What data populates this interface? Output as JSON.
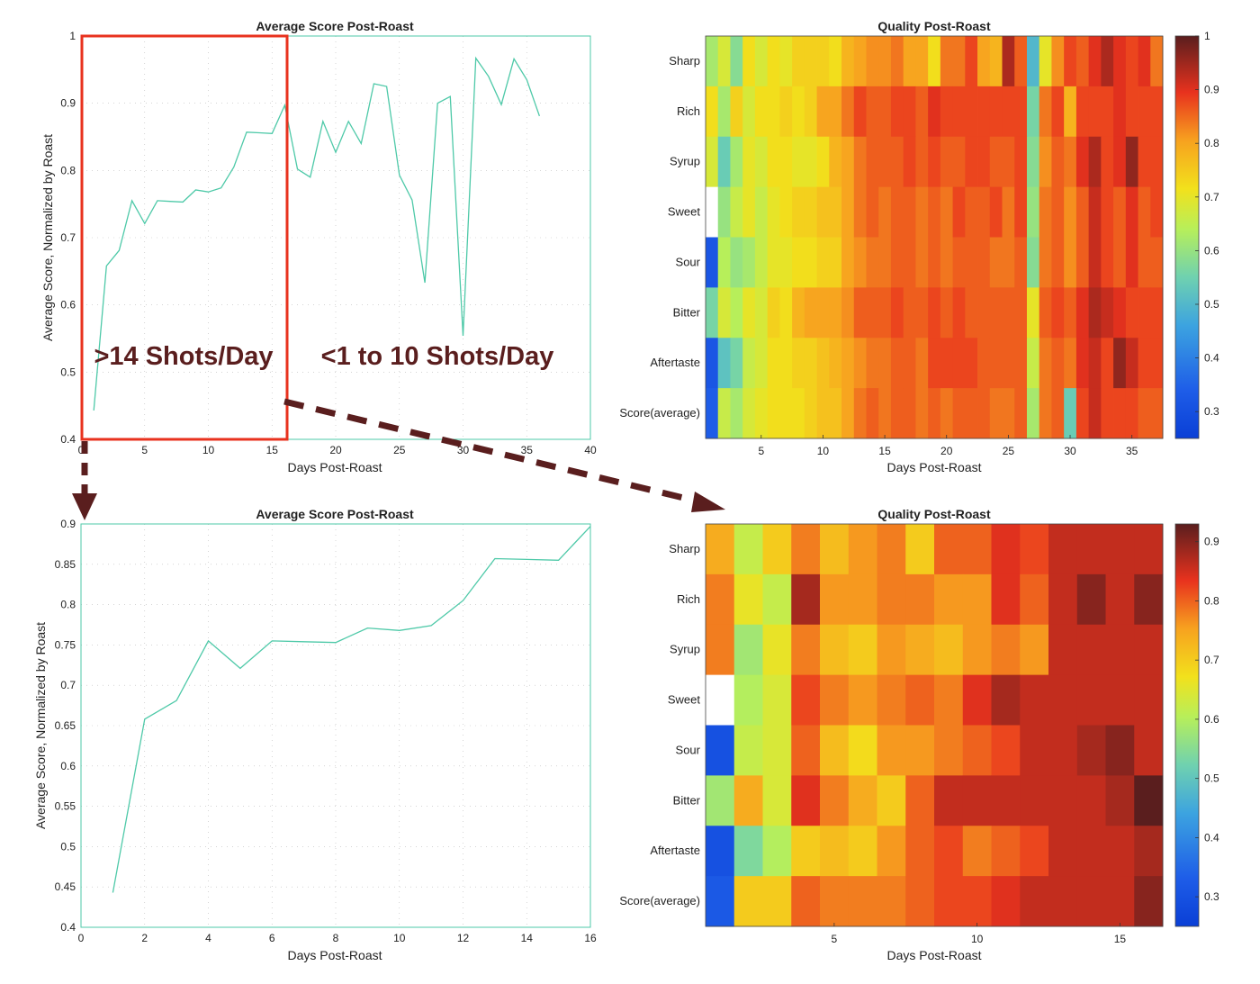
{
  "colors": {
    "line": "#4ec9a8",
    "frame": "#4ec9a8",
    "highlight": "#e8321e",
    "arrow": "#5a1e1e",
    "annotation": "#5a1e1e"
  },
  "annotations": {
    "high_volume": ">14 Shots/Day",
    "low_volume": "<1 to 10 Shots/Day"
  },
  "chart_data": [
    {
      "id": "line_full",
      "type": "line",
      "title": "Average Score Post-Roast",
      "xlabel": "Days Post-Roast",
      "ylabel": "Average Score, Normalized by Roast",
      "xlim": [
        0,
        40
      ],
      "ylim": [
        0.4,
        1
      ],
      "xticks": [
        0,
        5,
        10,
        15,
        20,
        25,
        30,
        35,
        40
      ],
      "yticks": [
        0.4,
        0.5,
        0.6,
        0.7,
        0.8,
        0.9,
        1
      ],
      "grid": true,
      "series": [
        {
          "x": [
            1,
            2,
            3,
            4,
            5,
            6,
            7,
            8,
            9,
            10,
            11,
            12,
            13,
            14,
            15,
            16,
            17,
            18,
            19,
            20,
            21,
            22,
            23,
            24,
            25,
            26,
            27,
            28,
            29,
            30,
            31,
            32,
            33,
            34,
            35,
            36
          ],
          "y": [
            0.443,
            0.658,
            0.681,
            0.755,
            0.721,
            0.755,
            0.754,
            0.753,
            0.771,
            0.768,
            0.774,
            0.805,
            0.857,
            0.856,
            0.855,
            0.897,
            0.802,
            0.79,
            0.873,
            0.827,
            0.873,
            0.84,
            0.929,
            0.925,
            0.793,
            0.756,
            0.633,
            0.9,
            0.91,
            0.554,
            0.967,
            0.94,
            0.898,
            0.966,
            0.935,
            0.881
          ]
        }
      ]
    },
    {
      "id": "heat_full",
      "type": "heatmap",
      "title": "Quality Post-Roast",
      "xlabel": "Days Post-Roast",
      "ylabel": "",
      "rows": [
        "Sharp",
        "Rich",
        "Syrup",
        "Sweet",
        "Sour",
        "Bitter",
        "Aftertaste",
        "Score(average)"
      ],
      "xticks": [
        5,
        10,
        15,
        20,
        25,
        30,
        35
      ],
      "colorbar_ticks": [
        0.3,
        0.4,
        0.5,
        0.6,
        0.7,
        0.8,
        0.9,
        1
      ],
      "clim": [
        0.25,
        1.0
      ],
      "values": [
        [
          0.62,
          0.68,
          0.58,
          0.72,
          0.68,
          0.72,
          0.7,
          0.74,
          0.74,
          0.74,
          0.72,
          0.78,
          0.8,
          0.82,
          0.82,
          0.84,
          0.8,
          0.8,
          0.72,
          0.84,
          0.84,
          0.88,
          0.8,
          0.78,
          0.94,
          0.86,
          0.5,
          0.7,
          0.82,
          0.88,
          0.86,
          0.9,
          0.94,
          0.9,
          0.88,
          0.9,
          0.84
        ],
        [
          0.72,
          0.62,
          0.74,
          0.68,
          0.72,
          0.72,
          0.74,
          0.72,
          0.74,
          0.8,
          0.8,
          0.84,
          0.88,
          0.86,
          0.86,
          0.88,
          0.88,
          0.86,
          0.9,
          0.88,
          0.88,
          0.88,
          0.88,
          0.88,
          0.88,
          0.88,
          0.56,
          0.84,
          0.88,
          0.78,
          0.88,
          0.88,
          0.88,
          0.9,
          0.88,
          0.88,
          0.88
        ],
        [
          0.68,
          0.54,
          0.62,
          0.7,
          0.68,
          0.72,
          0.72,
          0.7,
          0.7,
          0.72,
          0.78,
          0.8,
          0.84,
          0.86,
          0.86,
          0.86,
          0.88,
          0.86,
          0.88,
          0.86,
          0.86,
          0.88,
          0.88,
          0.86,
          0.86,
          0.88,
          0.58,
          0.82,
          0.86,
          0.84,
          0.9,
          0.94,
          0.88,
          0.9,
          0.96,
          0.88,
          0.88
        ],
        [
          1.0,
          0.6,
          0.66,
          0.7,
          0.66,
          0.7,
          0.72,
          0.74,
          0.74,
          0.76,
          0.76,
          0.8,
          0.84,
          0.86,
          0.84,
          0.86,
          0.86,
          0.84,
          0.86,
          0.84,
          0.88,
          0.86,
          0.86,
          0.88,
          0.84,
          0.88,
          0.6,
          0.84,
          0.86,
          0.82,
          0.86,
          0.92,
          0.88,
          0.86,
          0.9,
          0.86,
          0.88
        ],
        [
          0.32,
          0.64,
          0.6,
          0.62,
          0.66,
          0.7,
          0.7,
          0.72,
          0.72,
          0.74,
          0.74,
          0.8,
          0.82,
          0.84,
          0.84,
          0.86,
          0.86,
          0.84,
          0.86,
          0.84,
          0.86,
          0.86,
          0.86,
          0.84,
          0.84,
          0.86,
          0.58,
          0.84,
          0.86,
          0.82,
          0.86,
          0.92,
          0.88,
          0.86,
          0.9,
          0.86,
          0.86
        ],
        [
          0.56,
          0.68,
          0.64,
          0.7,
          0.68,
          0.74,
          0.72,
          0.78,
          0.8,
          0.8,
          0.8,
          0.82,
          0.86,
          0.86,
          0.86,
          0.88,
          0.86,
          0.86,
          0.88,
          0.86,
          0.88,
          0.86,
          0.86,
          0.86,
          0.86,
          0.86,
          0.7,
          0.86,
          0.88,
          0.86,
          0.9,
          0.94,
          0.92,
          0.9,
          0.88,
          0.88,
          0.88
        ],
        [
          0.32,
          0.52,
          0.56,
          0.66,
          0.68,
          0.72,
          0.72,
          0.74,
          0.74,
          0.76,
          0.78,
          0.8,
          0.82,
          0.84,
          0.84,
          0.86,
          0.86,
          0.84,
          0.88,
          0.88,
          0.88,
          0.88,
          0.86,
          0.86,
          0.86,
          0.86,
          0.66,
          0.84,
          0.86,
          0.84,
          0.9,
          0.92,
          0.88,
          0.96,
          0.92,
          0.88,
          0.88
        ],
        [
          0.34,
          0.66,
          0.62,
          0.68,
          0.7,
          0.72,
          0.72,
          0.72,
          0.74,
          0.76,
          0.76,
          0.8,
          0.84,
          0.86,
          0.84,
          0.86,
          0.86,
          0.84,
          0.86,
          0.84,
          0.86,
          0.86,
          0.86,
          0.84,
          0.84,
          0.86,
          0.62,
          0.84,
          0.86,
          0.54,
          0.88,
          0.92,
          0.88,
          0.88,
          0.88,
          0.86,
          0.86
        ]
      ]
    },
    {
      "id": "line_zoom",
      "type": "line",
      "title": "Average Score Post-Roast",
      "xlabel": "Days Post-Roast",
      "ylabel": "Average Score, Normalized by Roast",
      "xlim": [
        0,
        16
      ],
      "ylim": [
        0.4,
        0.9
      ],
      "xticks": [
        0,
        2,
        4,
        6,
        8,
        10,
        12,
        14,
        16
      ],
      "yticks": [
        0.4,
        0.45,
        0.5,
        0.55,
        0.6,
        0.65,
        0.7,
        0.75,
        0.8,
        0.85,
        0.9
      ],
      "grid": true,
      "series": [
        {
          "x": [
            1,
            2,
            3,
            4,
            5,
            6,
            7,
            8,
            9,
            10,
            11,
            12,
            13,
            14,
            15,
            16
          ],
          "y": [
            0.443,
            0.658,
            0.681,
            0.755,
            0.721,
            0.755,
            0.754,
            0.753,
            0.771,
            0.768,
            0.774,
            0.805,
            0.857,
            0.856,
            0.855,
            0.897
          ]
        }
      ]
    },
    {
      "id": "heat_zoom",
      "type": "heatmap",
      "title": "Quality Post-Roast",
      "xlabel": "Days Post-Roast",
      "ylabel": "",
      "rows": [
        "Sharp",
        "Rich",
        "Syrup",
        "Sweet",
        "Sour",
        "Bitter",
        "Aftertaste",
        "Score(average)"
      ],
      "xticks": [
        5,
        10,
        15
      ],
      "colorbar_ticks": [
        0.3,
        0.4,
        0.5,
        0.6,
        0.7,
        0.8,
        0.9
      ],
      "clim": [
        0.25,
        0.93
      ],
      "values": [
        [
          0.74,
          0.62,
          0.7,
          0.78,
          0.72,
          0.76,
          0.78,
          0.7,
          0.8,
          0.8,
          0.84,
          0.82,
          0.86,
          0.86,
          0.86,
          0.86
        ],
        [
          0.78,
          0.66,
          0.62,
          0.88,
          0.76,
          0.76,
          0.78,
          0.78,
          0.76,
          0.76,
          0.84,
          0.8,
          0.86,
          0.9,
          0.86,
          0.9
        ],
        [
          0.78,
          0.58,
          0.66,
          0.78,
          0.72,
          0.7,
          0.76,
          0.74,
          0.72,
          0.76,
          0.78,
          0.76,
          0.86,
          0.86,
          0.86,
          0.86
        ],
        [
          1.0,
          0.6,
          0.64,
          0.82,
          0.78,
          0.76,
          0.78,
          0.8,
          0.78,
          0.84,
          0.88,
          0.86,
          0.86,
          0.86,
          0.86,
          0.86
        ],
        [
          0.3,
          0.62,
          0.64,
          0.8,
          0.72,
          0.68,
          0.76,
          0.76,
          0.78,
          0.8,
          0.82,
          0.86,
          0.86,
          0.88,
          0.9,
          0.86
        ],
        [
          0.58,
          0.74,
          0.64,
          0.84,
          0.78,
          0.74,
          0.7,
          0.8,
          0.86,
          0.86,
          0.86,
          0.86,
          0.86,
          0.86,
          0.88,
          0.93
        ],
        [
          0.3,
          0.54,
          0.6,
          0.7,
          0.72,
          0.7,
          0.76,
          0.8,
          0.82,
          0.78,
          0.8,
          0.82,
          0.86,
          0.86,
          0.86,
          0.88
        ],
        [
          0.32,
          0.7,
          0.7,
          0.8,
          0.78,
          0.78,
          0.78,
          0.8,
          0.82,
          0.82,
          0.84,
          0.86,
          0.86,
          0.86,
          0.86,
          0.9
        ]
      ]
    }
  ]
}
